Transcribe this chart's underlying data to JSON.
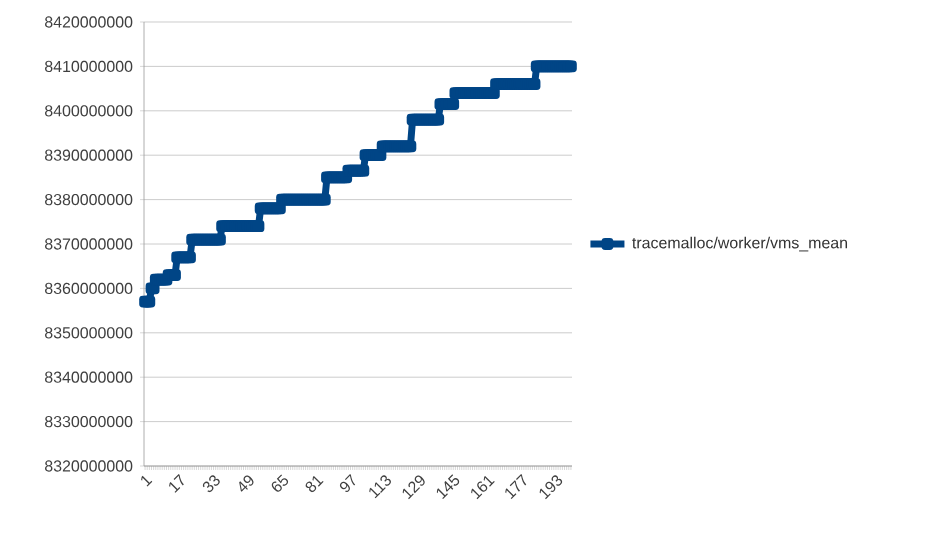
{
  "chart_data": {
    "type": "line",
    "categories": [
      "1",
      null,
      null,
      null,
      null,
      null,
      null,
      null,
      null,
      null,
      null,
      null,
      null,
      null,
      null,
      null,
      "17",
      null,
      null,
      null,
      null,
      null,
      null,
      null,
      null,
      null,
      null,
      null,
      null,
      null,
      null,
      null,
      "33",
      null,
      null,
      null,
      null,
      null,
      null,
      null,
      null,
      null,
      null,
      null,
      null,
      null,
      null,
      null,
      "49",
      null,
      null,
      null,
      null,
      null,
      null,
      null,
      null,
      null,
      null,
      null,
      null,
      null,
      null,
      null,
      "65",
      null,
      null,
      null,
      null,
      null,
      null,
      null,
      null,
      null,
      null,
      null,
      null,
      null,
      null,
      null,
      "81",
      null,
      null,
      null,
      null,
      null,
      null,
      null,
      null,
      null,
      null,
      null,
      null,
      null,
      null,
      null,
      "97",
      null,
      null,
      null,
      null,
      null,
      null,
      null,
      null,
      null,
      null,
      null,
      null,
      null,
      null,
      null,
      "113",
      null,
      null,
      null,
      null,
      null,
      null,
      null,
      null,
      null,
      null,
      null,
      null,
      null,
      null,
      null,
      "129",
      null,
      null,
      null,
      null,
      null,
      null,
      null,
      null,
      null,
      null,
      null,
      null,
      null,
      null,
      null,
      "145",
      null,
      null,
      null,
      null,
      null,
      null,
      null,
      null,
      null,
      null,
      null,
      null,
      null,
      null,
      null,
      "161",
      null,
      null,
      null,
      null,
      null,
      null,
      null,
      null,
      null,
      null,
      null,
      null,
      null,
      null,
      null,
      "177",
      null,
      null,
      null,
      null,
      null,
      null,
      null,
      null,
      null,
      null,
      null,
      null,
      null,
      null,
      null,
      "193",
      null,
      null,
      null,
      null,
      null,
      null,
      null
    ],
    "series": [
      {
        "name": "tracemalloc/worker/vms_mean",
        "color": "#004586",
        "values": [
          8357000000,
          8357000000,
          8357000000,
          8360000000,
          8360000000,
          8362000000,
          8362000000,
          8362000000,
          8362000000,
          8362000000,
          8362000000,
          8363000000,
          8363000000,
          8363000000,
          8363000000,
          8367000000,
          8367000000,
          8367000000,
          8367000000,
          8367000000,
          8367000000,
          8367000000,
          8371000000,
          8371000000,
          8371000000,
          8371000000,
          8371000000,
          8371000000,
          8371000000,
          8371000000,
          8371000000,
          8371000000,
          8371000000,
          8371000000,
          8371000000,
          8371000000,
          8374000000,
          8374000000,
          8374000000,
          8374000000,
          8374000000,
          8374000000,
          8374000000,
          8374000000,
          8374000000,
          8374000000,
          8374000000,
          8374000000,
          8374000000,
          8374000000,
          8374000000,
          8374000000,
          8374000000,
          8374000000,
          8378000000,
          8378000000,
          8378000000,
          8378000000,
          8378000000,
          8378000000,
          8378000000,
          8378000000,
          8378000000,
          8378000000,
          8380000000,
          8380000000,
          8380000000,
          8380000000,
          8380000000,
          8380000000,
          8380000000,
          8380000000,
          8380000000,
          8380000000,
          8380000000,
          8380000000,
          8380000000,
          8380000000,
          8380000000,
          8380000000,
          8380000000,
          8380000000,
          8380000000,
          8380000000,
          8380000000,
          8385000000,
          8385000000,
          8385000000,
          8385000000,
          8385000000,
          8385000000,
          8385000000,
          8385000000,
          8385000000,
          8385000000,
          8386500000,
          8386500000,
          8386500000,
          8386500000,
          8386500000,
          8386500000,
          8386500000,
          8386500000,
          8390000000,
          8390000000,
          8390000000,
          8390000000,
          8390000000,
          8390000000,
          8390000000,
          8390000000,
          8392000000,
          8392000000,
          8392000000,
          8392000000,
          8392000000,
          8392000000,
          8392000000,
          8392000000,
          8392000000,
          8392000000,
          8392000000,
          8392000000,
          8392000000,
          8392000000,
          8398000000,
          8398000000,
          8398000000,
          8398000000,
          8398000000,
          8398000000,
          8398000000,
          8398000000,
          8398000000,
          8398000000,
          8398000000,
          8398000000,
          8398000000,
          8401500000,
          8401500000,
          8401500000,
          8401500000,
          8401500000,
          8401500000,
          8401500000,
          8404000000,
          8404000000,
          8404000000,
          8404000000,
          8404000000,
          8404000000,
          8404000000,
          8404000000,
          8404000000,
          8404000000,
          8404000000,
          8404000000,
          8404000000,
          8404000000,
          8404000000,
          8404000000,
          8404000000,
          8404000000,
          8404000000,
          8406000000,
          8406000000,
          8406000000,
          8406000000,
          8406000000,
          8406000000,
          8406000000,
          8406000000,
          8406000000,
          8406000000,
          8406000000,
          8406000000,
          8406000000,
          8406000000,
          8406000000,
          8406000000,
          8406000000,
          8406000000,
          8406000000,
          8410000000,
          8410000000,
          8410000000,
          8410000000,
          8410000000,
          8410000000,
          8410000000,
          8410000000,
          8410000000,
          8410000000,
          8410000000,
          8410000000,
          8410000000,
          8410000000,
          8410000000,
          8410000000,
          8410000000
        ]
      }
    ],
    "ylim": [
      8320000000,
      8420000000
    ],
    "yticks": [
      8320000000,
      8330000000,
      8340000000,
      8350000000,
      8360000000,
      8370000000,
      8380000000,
      8390000000,
      8400000000,
      8410000000,
      8420000000
    ],
    "grid": "y",
    "legend": "right",
    "marker": "square",
    "line_style": "solid"
  }
}
